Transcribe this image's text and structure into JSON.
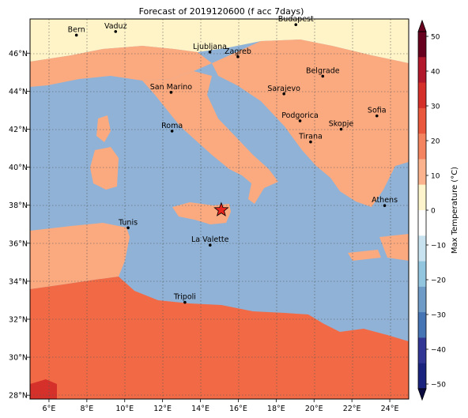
{
  "title": "Forecast of 2019120600 (f acc 7days)",
  "colorbar": {
    "label": "Max Temperature (°C)",
    "ticks": [
      "50",
      "40",
      "30",
      "20",
      "10",
      "0",
      "−10",
      "−20",
      "−30",
      "−40",
      "−50"
    ],
    "colors": [
      "#67001f",
      "#b2182b",
      "#d6302b",
      "#e9573c",
      "#f4845f",
      "#fbb38d",
      "#fff5cc",
      "#ffffff",
      "#c8e3ef",
      "#92c5de",
      "#6f9bc7",
      "#4575b4",
      "#313695",
      "#1a237e"
    ]
  },
  "axes": {
    "lon_labels": [
      "6°E",
      "8°E",
      "10°E",
      "12°E",
      "14°E",
      "16°E",
      "18°E",
      "20°E",
      "22°E",
      "24°E"
    ],
    "lat_labels": [
      "46°N",
      "44°N",
      "42°N",
      "40°N",
      "38°N",
      "36°N",
      "34°N",
      "32°N",
      "30°N",
      "28°N"
    ],
    "lon_range": [
      5,
      25
    ],
    "lat_range": [
      27.8,
      47.8
    ]
  },
  "cities": [
    {
      "name": "Bern",
      "lon": 7.45,
      "lat": 46.95
    },
    {
      "name": "Vaduz",
      "lon": 9.52,
      "lat": 47.14
    },
    {
      "name": "Budapest",
      "lon": 19.04,
      "lat": 47.5
    },
    {
      "name": "Ljubljana",
      "lon": 14.5,
      "lat": 46.06
    },
    {
      "name": "Zagreb",
      "lon": 15.98,
      "lat": 45.81
    },
    {
      "name": "Belgrade",
      "lon": 20.46,
      "lat": 44.79
    },
    {
      "name": "San Marino",
      "lon": 12.45,
      "lat": 43.94
    },
    {
      "name": "Sarajevo",
      "lon": 18.41,
      "lat": 43.86
    },
    {
      "name": "Podgorica",
      "lon": 19.26,
      "lat": 42.44
    },
    {
      "name": "Sofia",
      "lon": 23.32,
      "lat": 42.7
    },
    {
      "name": "Skopje",
      "lon": 21.43,
      "lat": 42.0
    },
    {
      "name": "Roma",
      "lon": 12.5,
      "lat": 41.9
    },
    {
      "name": "Tirana",
      "lon": 19.82,
      "lat": 41.33
    },
    {
      "name": "Athens",
      "lon": 23.73,
      "lat": 37.98
    },
    {
      "name": "Tunis",
      "lon": 10.18,
      "lat": 36.81
    },
    {
      "name": "La Valette",
      "lon": 14.51,
      "lat": 35.9
    },
    {
      "name": "Tripoli",
      "lon": 13.18,
      "lat": 32.89
    }
  ],
  "marker": {
    "name": "star",
    "lon": 15.1,
    "lat": 37.75,
    "color": "#e8241e"
  },
  "region_colors": {
    "sea": "#8fb2d6",
    "cool_land": "#fff4c8",
    "warm_land": "#fbaa80",
    "hot_land": "#f26a45",
    "very_hot": "#d6302b"
  }
}
